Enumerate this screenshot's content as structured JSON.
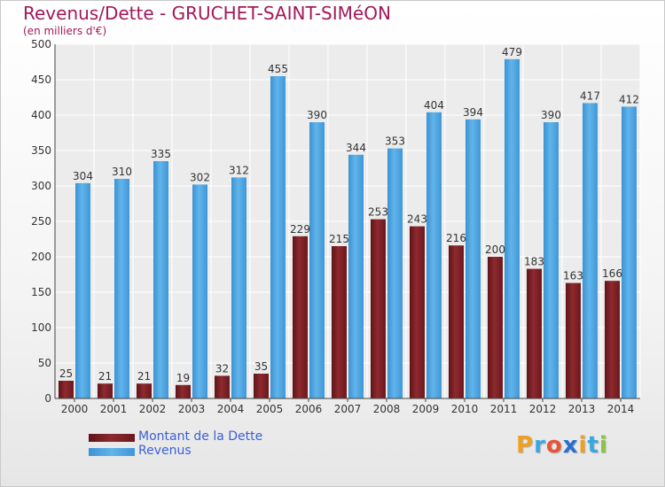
{
  "colors": {
    "dette": "#7a1f24",
    "dette_light": "#9a3236",
    "revenus": "#4aa3e0",
    "revenus_light": "#6cb8ec",
    "title": "#a3185a",
    "legend_text": "#3b5fd6"
  },
  "header": {
    "title": "Revenus/Dette - GRUCHET-SAINT-SIMéON",
    "subtitle": "(en milliers d'€)"
  },
  "legend": {
    "items": [
      {
        "label": "Montant de la Dette",
        "color": "#7a1f24"
      },
      {
        "label": "Revenus",
        "color": "#4aa3e0"
      }
    ]
  },
  "logo": {
    "letters": [
      "P",
      "r",
      "o",
      "x",
      "i",
      "t",
      "i"
    ],
    "colors": [
      "#f0a020",
      "#3aa8e0",
      "#e8543a",
      "#2a6fd0",
      "#f0a020",
      "#3aa8e0",
      "#8cc63f"
    ]
  },
  "chart_data": {
    "type": "bar",
    "categories": [
      "2000",
      "2001",
      "2002",
      "2003",
      "2004",
      "2005",
      "2006",
      "2007",
      "2008",
      "2009",
      "2010",
      "2011",
      "2012",
      "2013",
      "2014"
    ],
    "series": [
      {
        "name": "Montant de la Dette",
        "values": [
          25,
          21,
          21,
          19,
          32,
          35,
          229,
          215,
          253,
          243,
          216,
          200,
          183,
          163,
          166
        ]
      },
      {
        "name": "Revenus",
        "values": [
          304,
          310,
          335,
          302,
          312,
          455,
          390,
          344,
          353,
          404,
          394,
          479,
          390,
          417,
          412
        ]
      }
    ],
    "ylim": [
      0,
      500
    ],
    "yticks": [
      0,
      50,
      100,
      150,
      200,
      250,
      300,
      350,
      400,
      450,
      500
    ],
    "grid": true,
    "legend_position": "bottom-left"
  }
}
